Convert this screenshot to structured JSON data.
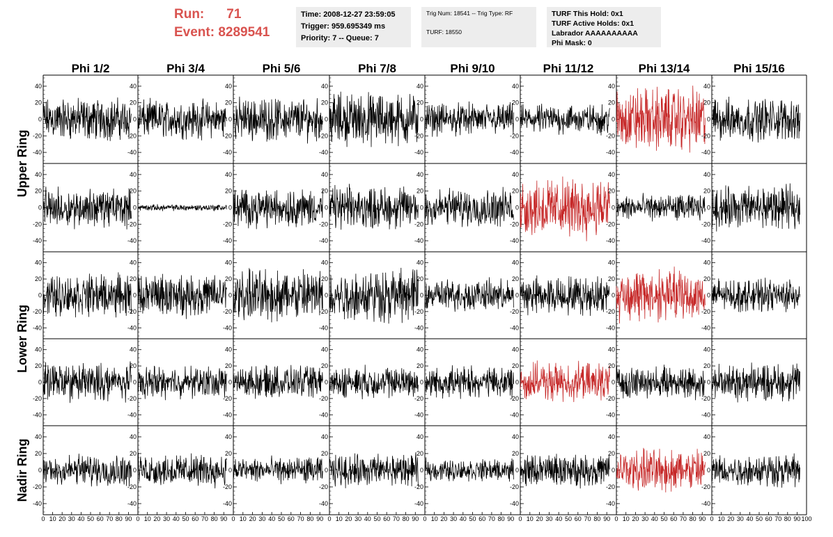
{
  "header": {
    "run_label": "Run:",
    "run_value": "71",
    "event_label": "Event:",
    "event_value": "8289541",
    "time": "Time: 2008-12-27 23:59:05",
    "trigger": "Trigger: 959.695349 ms",
    "priority": "Priority: 7 -- Queue: 7",
    "trig_num": "Trig Num: 18541 -- Trig Type: RF",
    "turf": "TURF: 18550",
    "turf_this_hold": "TURF This Hold: 0x1",
    "turf_active_holds": "TURF Active Holds: 0x1",
    "labrador": "Labrador AAAAAAAAAA",
    "phi_mask": "Phi Mask: 0"
  },
  "chart_data": {
    "type": "line",
    "columns": [
      "Phi 1/2",
      "Phi 3/4",
      "Phi 5/6",
      "Phi 7/8",
      "Phi 9/10",
      "Phi 11/12",
      "Phi 13/14",
      "Phi 15/16"
    ],
    "rows": [
      "Upper Ring",
      "Upper Ring",
      "Lower Ring",
      "Lower Ring",
      "Nadir Ring"
    ],
    "row_labels": [
      {
        "label": "Upper Ring"
      },
      {
        "label": "Lower Ring"
      },
      {
        "label": "Nadir Ring"
      }
    ],
    "xlim": [
      0,
      100
    ],
    "ylim": [
      -50,
      50
    ],
    "x_ticks": [
      "0",
      "10",
      "20",
      "30",
      "40",
      "50",
      "60",
      "70",
      "80",
      "90",
      "100"
    ],
    "y_ticks": [
      "40",
      "20",
      "0",
      "-20",
      "-40"
    ],
    "y_tick_values": [
      40,
      20,
      0,
      -20,
      -40
    ],
    "trace_points": 260,
    "colors": {
      "normal": "#000000",
      "highlight": "#c62828",
      "header_red": "#d9534f"
    },
    "highlighted_panels": [
      {
        "row": 0,
        "col": 6
      },
      {
        "row": 1,
        "col": 5
      },
      {
        "row": 2,
        "col": 6
      },
      {
        "row": 3,
        "col": 5
      },
      {
        "row": 4,
        "col": 6
      }
    ],
    "amplitude": [
      [
        20,
        18,
        20,
        25,
        15,
        14,
        30,
        20
      ],
      [
        18,
        3,
        18,
        20,
        18,
        28,
        12,
        20
      ],
      [
        20,
        20,
        25,
        25,
        15,
        18,
        25,
        15
      ],
      [
        18,
        15,
        15,
        15,
        15,
        18,
        15,
        18
      ],
      [
        15,
        15,
        12,
        15,
        10,
        15,
        20,
        15
      ]
    ],
    "grid": false
  }
}
